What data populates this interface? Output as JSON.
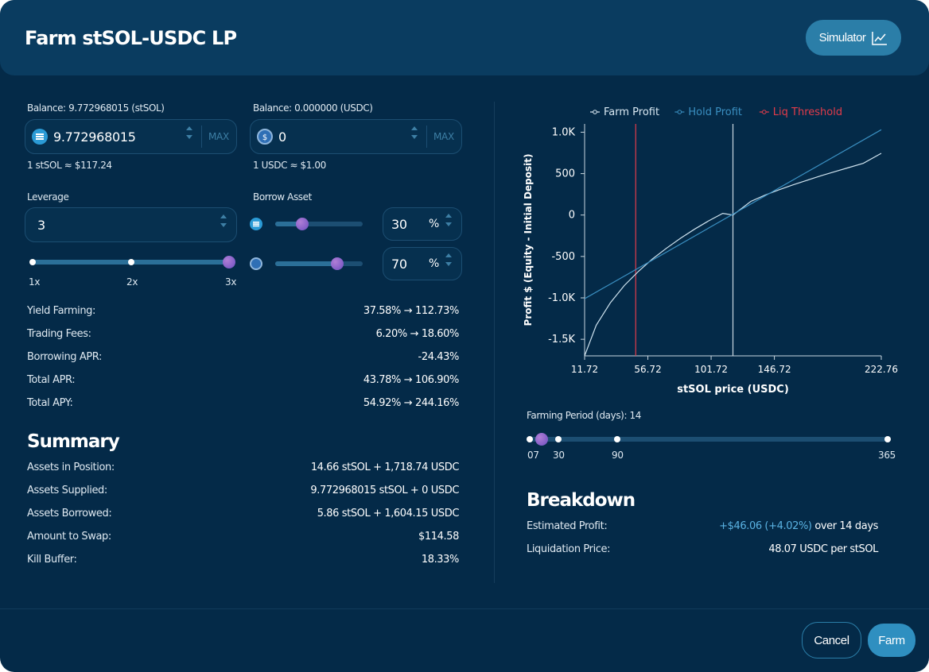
{
  "header": {
    "title": "Farm stSOL-USDC LP",
    "simulator_label": "Simulator"
  },
  "supply": {
    "stsol": {
      "balance_label": "Balance: 9.772968015 (stSOL)",
      "value": "9.772968015",
      "max": "MAX",
      "rate": "1 stSOL ≈ $117.24",
      "icon": "stsol-coin-icon"
    },
    "usdc": {
      "balance_label": "Balance: 0.000000 (USDC)",
      "value": "0",
      "max": "MAX",
      "rate": "1 USDC ≈ $1.00",
      "icon": "usdc-coin-icon"
    }
  },
  "leverage": {
    "label": "Leverage",
    "value": "3",
    "ticks": [
      "1x",
      "2x",
      "3x"
    ],
    "level_fraction": 1.0
  },
  "borrow": {
    "label": "Borrow Asset",
    "stsol_pct": "30",
    "usdc_pct": "70",
    "pct_symbol": "%"
  },
  "apr": [
    {
      "k": "Yield Farming:",
      "v": "37.58% → 112.73%"
    },
    {
      "k": "Trading Fees:",
      "v": "6.20% → 18.60%"
    },
    {
      "k": "Borrowing APR:",
      "v": "-24.43%"
    },
    {
      "k": "Total APR:",
      "v": "43.78% → 106.90%"
    },
    {
      "k": "Total APY:",
      "v": "54.92% → 244.16%"
    }
  ],
  "summary": {
    "title": "Summary",
    "rows": [
      {
        "k": "Assets in Position:",
        "v": "14.66 stSOL + 1,718.74 USDC"
      },
      {
        "k": "Assets Supplied:",
        "v": "9.772968015 stSOL + 0 USDC"
      },
      {
        "k": "Assets Borrowed:",
        "v": "5.86 stSOL + 1,604.15 USDC"
      },
      {
        "k": "Amount to Swap:",
        "v": "$114.58"
      },
      {
        "k": "Kill Buffer:",
        "v": "18.33%"
      }
    ]
  },
  "chart_data": {
    "type": "line",
    "xlabel": "stSOL price (USDC)",
    "ylabel": "Profit $ (Equity - Initial Deposit)",
    "x_ticks": [
      "11.72",
      "56.72",
      "101.72",
      "146.72",
      "222.76"
    ],
    "y_ticks": [
      "1.0K",
      "500",
      "0",
      "-500",
      "-1.0K",
      "-1.5K"
    ],
    "xlim": [
      11.72,
      222.76
    ],
    "ylim": [
      -1700,
      1100
    ],
    "legend_placement": "top",
    "series": [
      {
        "name": "Farm Profit",
        "color": "#cfe3ef",
        "x": [
          11.72,
          20,
          30,
          40,
          50,
          60,
          70,
          80,
          90,
          100,
          110,
          117.24,
          130,
          140,
          150,
          160,
          170,
          180,
          190,
          200,
          210,
          222.76
        ],
        "y": [
          -1700,
          -1330,
          -1060,
          -850,
          -680,
          -530,
          -400,
          -280,
          -170,
          -70,
          20,
          0,
          165,
          240,
          305,
          365,
          420,
          475,
          525,
          575,
          625,
          745
        ]
      },
      {
        "name": "Hold Profit",
        "color": "#3a8fc1",
        "x": [
          11.72,
          222.76
        ],
        "y": [
          -1010,
          1030
        ]
      }
    ],
    "reference_lines": [
      {
        "name": "Liq Threshold",
        "color": "#e23b4a",
        "x": 48.07
      },
      {
        "name": "current price",
        "color": "#c9d6df",
        "x": 117.24
      }
    ]
  },
  "chart_legend": [
    {
      "label": "Farm Profit",
      "color": "#d9e8f2"
    },
    {
      "label": "Hold Profit",
      "color": "#3a8fc1"
    },
    {
      "label": "Liq Threshold",
      "color": "#e23b4a"
    }
  ],
  "period": {
    "label": "Farming Period (days): 14",
    "ticks": [
      "07",
      "30",
      "90",
      "365"
    ],
    "value_days": 14
  },
  "breakdown": {
    "title": "Breakdown",
    "profit_key": "Estimated Profit:",
    "profit_value": "+$46.06 (+4.02%)",
    "profit_suffix": "over 14 days",
    "liq_key": "Liquidation Price:",
    "liq_value": "48.07 USDC per stSOL"
  },
  "footer": {
    "cancel": "Cancel",
    "farm": "Farm"
  }
}
